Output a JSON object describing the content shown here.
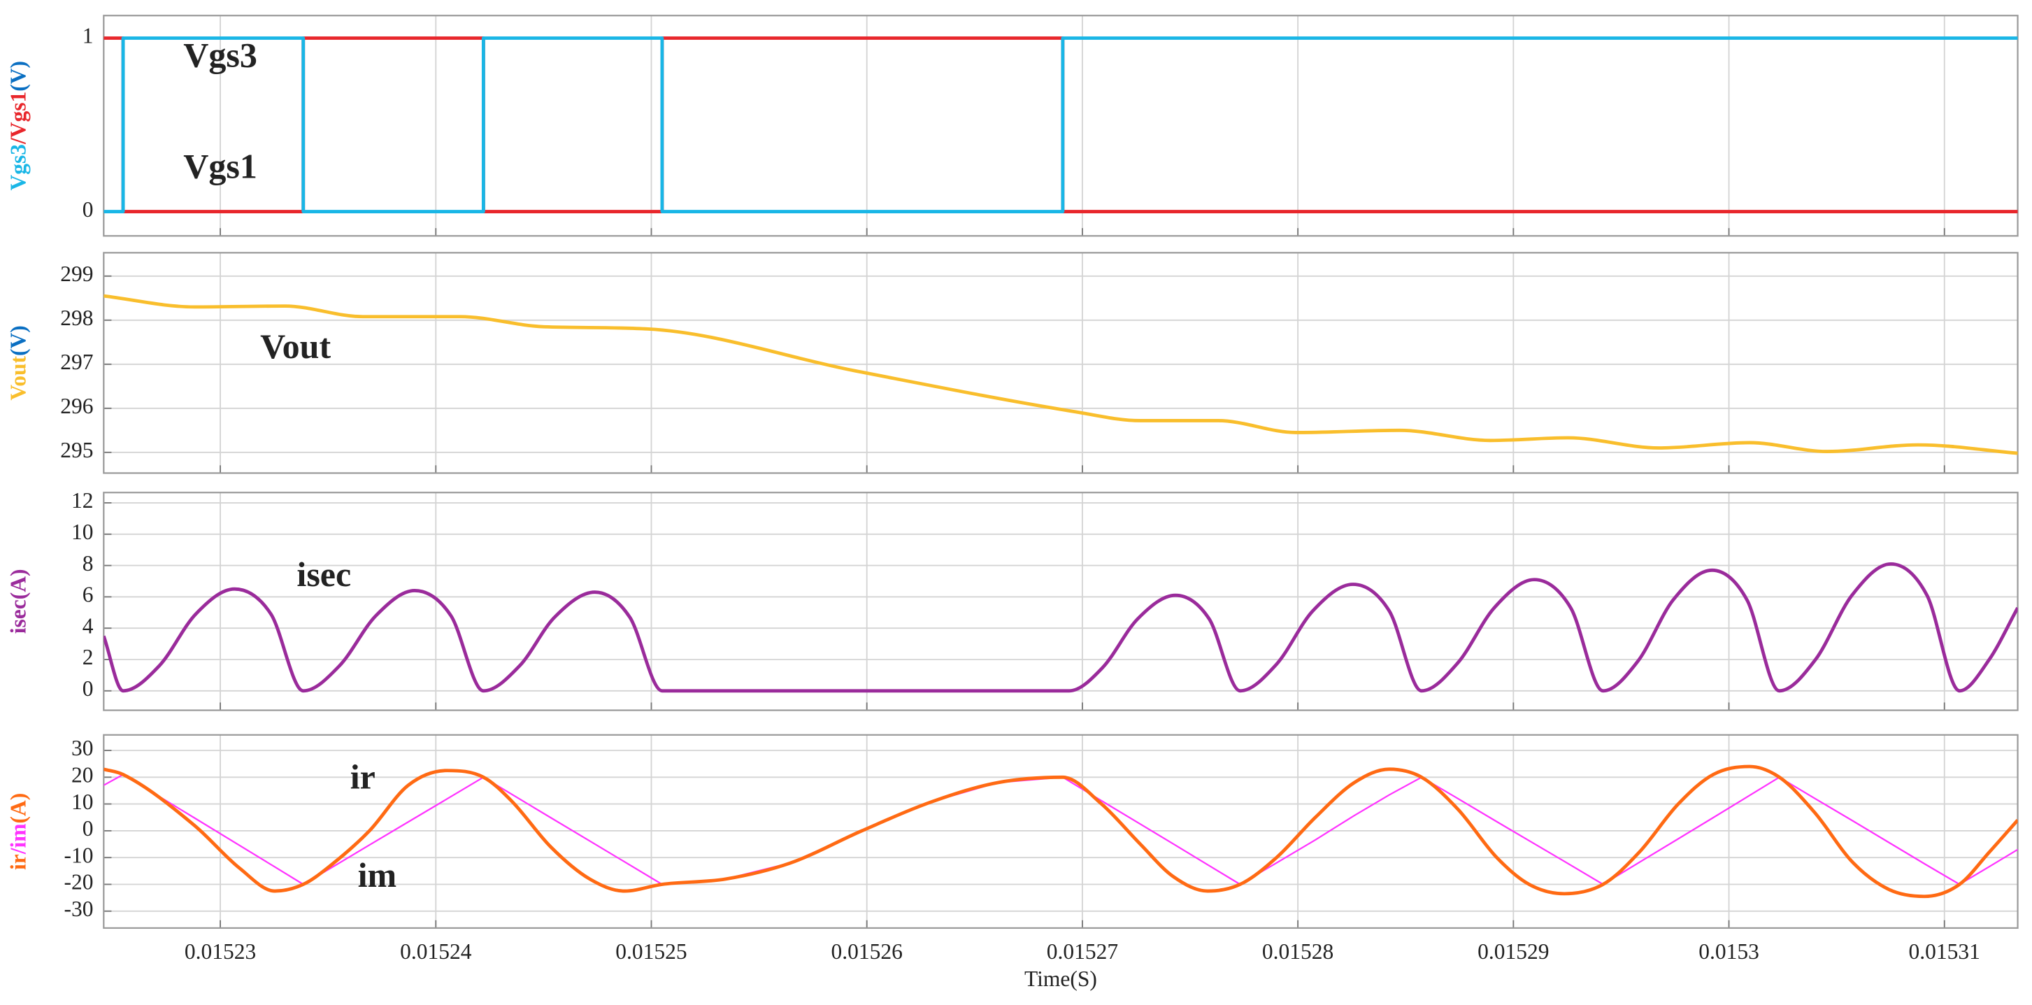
{
  "chart_data": [
    {
      "type": "line",
      "ylabel_parts": [
        {
          "text": "Vgs3",
          "color": "#19b6e6"
        },
        {
          "text": "/Vgs1",
          "color": "#e8262b"
        },
        {
          "text": "(V)",
          "color": "#0a6fc2"
        }
      ],
      "x": [
        0.01522459,
        0.01522549,
        0.01522549,
        0.01523385,
        0.01523385,
        0.01524221,
        0.01524221,
        0.0152505,
        0.0152505,
        0.01526909,
        0.01526909,
        0.0153134
      ],
      "series": [
        {
          "name": "Vgs1",
          "color": "#e8262b",
          "values": [
            1,
            1,
            0,
            0,
            1,
            1,
            0,
            0,
            1,
            1,
            0,
            0
          ]
        },
        {
          "name": "Vgs3",
          "color": "#19b6e6",
          "values": [
            0,
            0,
            1,
            1,
            0,
            0,
            1,
            1,
            0,
            0,
            1,
            1
          ]
        }
      ],
      "annotations": [
        {
          "text": "Vgs3",
          "color": "#19b6e6",
          "x": 0.01523,
          "y": 0.88
        },
        {
          "text": "Vgs1",
          "color": "#e8262b",
          "x": 0.01523,
          "y": 0.24
        }
      ],
      "xlim": [
        0.01522459,
        0.0153134
      ],
      "xticks": [
        0.01523,
        0.01524,
        0.01525,
        0.01526,
        0.01527,
        0.01528,
        0.01529,
        0.0153,
        0.01531
      ],
      "ylim": [
        -0.14,
        1.13
      ],
      "yticks": [
        0,
        1
      ],
      "grid": true
    },
    {
      "type": "line",
      "ylabel_parts": [
        {
          "text": "Vout",
          "color": "#f9be2c"
        },
        {
          "text": "(V)",
          "color": "#0a6fc2"
        }
      ],
      "x": [
        0.01522459,
        0.0152288,
        0.01523301,
        0.01523661,
        0.01524112,
        0.01524503,
        0.01524984,
        0.01525946,
        0.01526969,
        0.01527269,
        0.0152763,
        0.01527991,
        0.01528472,
        0.01528893,
        0.01529254,
        0.01529675,
        0.01530096,
        0.01530456,
        0.01530877,
        0.0153134
      ],
      "series": [
        {
          "name": "Vout",
          "color": "#f9be2c",
          "smooth": true,
          "values": [
            298.55,
            298.3,
            298.32,
            298.08,
            298.08,
            297.85,
            297.8,
            296.85,
            295.92,
            295.72,
            295.72,
            295.45,
            295.5,
            295.27,
            295.33,
            295.1,
            295.22,
            295.02,
            295.17,
            294.98
          ]
        }
      ],
      "annotations": [
        {
          "text": "Vout",
          "color": "#f9be2c",
          "x": 0.01523349,
          "y": 297.32
        }
      ],
      "xlim": [
        0.01522459,
        0.0153134
      ],
      "xticks": [
        0.01523,
        0.01524,
        0.01525,
        0.01526,
        0.01527,
        0.01528,
        0.01529,
        0.0153,
        0.01531
      ],
      "ylim": [
        294.53,
        299.53
      ],
      "yticks": [
        295,
        296,
        297,
        298,
        299
      ],
      "grid": true
    },
    {
      "type": "line",
      "ylabel_parts": [
        {
          "text": "isec(A)",
          "color": "#9a2b9b"
        }
      ],
      "x": [
        0.01522459,
        0.01522549,
        0.01522717,
        0.01522886,
        0.01523066,
        0.01523235,
        0.01523385,
        0.01523553,
        0.01523722,
        0.01523902,
        0.0152407,
        0.01524221,
        0.01524389,
        0.01524551,
        0.01524738,
        0.015249,
        0.0152505,
        0.01526939,
        0.01527095,
        0.01527257,
        0.01527432,
        0.01527588,
        0.01527732,
        0.01527901,
        0.01528069,
        0.01528256,
        0.01528424,
        0.01528574,
        0.01528743,
        0.01528911,
        0.01529097,
        0.01529266,
        0.01529416,
        0.01529578,
        0.01529741,
        0.01529921,
        0.01530084,
        0.01530234,
        0.01530402,
        0.01530571,
        0.01530751,
        0.01530919,
        0.0153107,
        0.01531208,
        0.0153134
      ],
      "series": [
        {
          "name": "isec",
          "color": "#9a2b9b",
          "smooth": true,
          "values": [
            3.5,
            0,
            1.6,
            4.9,
            6.5,
            4.9,
            0,
            1.6,
            4.8,
            6.4,
            4.8,
            0,
            1.6,
            4.7,
            6.3,
            4.7,
            0,
            0,
            1.5,
            4.6,
            6.1,
            4.6,
            0,
            1.7,
            5.1,
            6.8,
            5.1,
            0,
            1.8,
            5.3,
            7.1,
            5.3,
            0,
            1.9,
            5.8,
            7.7,
            5.8,
            0,
            2.0,
            6.1,
            8.1,
            6.1,
            0,
            2.0,
            5.3
          ]
        }
      ],
      "annotations": [
        {
          "text": "isec",
          "color": "#9a2b9b",
          "x": 0.01523481,
          "y": 7.2
        }
      ],
      "xlim": [
        0.01522459,
        0.0153134
      ],
      "xticks": [
        0.01523,
        0.01524,
        0.01525,
        0.01526,
        0.01527,
        0.01528,
        0.01529,
        0.0153,
        0.01531
      ],
      "ylim": [
        -1.24,
        12.66
      ],
      "yticks": [
        0,
        2,
        4,
        6,
        8,
        10,
        12
      ],
      "grid": true
    },
    {
      "type": "line",
      "ylabel_parts": [
        {
          "text": "ir",
          "color": "#ff6a13"
        },
        {
          "text": "/im",
          "color": "#ff33ff"
        },
        {
          "text": "(A)",
          "color": "#ff6a13"
        }
      ],
      "x": [
        0.01522459,
        0.01522549,
        0.0152288,
        0.0152309,
        0.01523253,
        0.01523385,
        0.01523511,
        0.01523692,
        0.01523872,
        0.01524052,
        0.01524221,
        0.01524353,
        0.01524533,
        0.01524714,
        0.01524876,
        0.0152505,
        0.01525345,
        0.01525646,
        0.01525977,
        0.01526307,
        0.01526608,
        0.01526909,
        0.01527089,
        0.01527269,
        0.0152742,
        0.01527582,
        0.01527732,
        0.01527901,
        0.01528081,
        0.01528262,
        0.01528424,
        0.01528574,
        0.01528743,
        0.01528923,
        0.01529073,
        0.01529236,
        0.01529416,
        0.01529584,
        0.01529765,
        0.01529927,
        0.01530096,
        0.01530234,
        0.01530396,
        0.01530577,
        0.01530745,
        0.01530907,
        0.0153107,
        0.01531208,
        0.0153134
      ],
      "series": [
        {
          "name": "im",
          "color": "#ff33ff",
          "values": [
            17,
            21,
            4.8,
            -5.5,
            -13.5,
            -20,
            -14,
            -5.3,
            3.3,
            11.9,
            20,
            13.6,
            4.9,
            -3.8,
            -11.6,
            -20,
            -18,
            -12,
            0,
            11,
            18,
            20,
            11.2,
            2.5,
            -4.8,
            -12.7,
            -20,
            -12,
            -3.4,
            5.7,
            13.4,
            20,
            12,
            3.4,
            -3.7,
            -11.4,
            -20,
            -11.8,
            -3,
            4.9,
            13.2,
            20,
            12.2,
            3.6,
            -4.5,
            -12.3,
            -20,
            -13.4,
            -7
          ]
        },
        {
          "name": "ir",
          "color": "#ff6a13",
          "smooth": true,
          "values": [
            23,
            21,
            2,
            -14,
            -22.5,
            -20,
            -13,
            0,
            17,
            22.5,
            20,
            11,
            -6,
            -18,
            -22.5,
            -20,
            -18,
            -12,
            0,
            11,
            18,
            20,
            10,
            -5,
            -17,
            -22.5,
            -20,
            -10,
            5,
            18,
            23,
            20,
            8,
            -10,
            -20,
            -23.5,
            -20,
            -8,
            10,
            21,
            24,
            20,
            7,
            -12,
            -22,
            -24.5,
            -20,
            -8,
            4
          ]
        }
      ],
      "annotations": [
        {
          "text": "ir",
          "color": "#ff6a13",
          "x": 0.01523661,
          "y": 18.8
        },
        {
          "text": "im",
          "color": "#ff33ff",
          "x": 0.01523728,
          "y": -17.9
        }
      ],
      "xlabel": "Time(S)",
      "xtick_labels": true,
      "xlim": [
        0.01522459,
        0.0153134
      ],
      "xticks": [
        0.01523,
        0.01524,
        0.01525,
        0.01526,
        0.01527,
        0.01528,
        0.01529,
        0.0153,
        0.01531
      ],
      "ylim": [
        -36.3,
        35.8
      ],
      "yticks": [
        -30,
        -20,
        -10,
        0,
        10,
        20,
        30
      ],
      "grid": true
    }
  ]
}
